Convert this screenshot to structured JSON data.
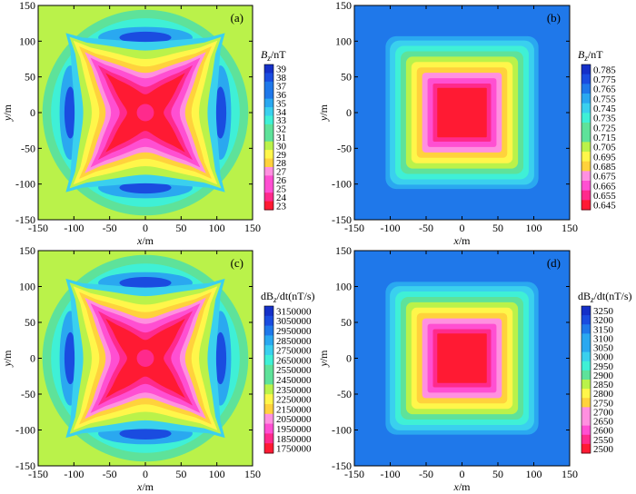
{
  "colors": {
    "background": "#ffffff",
    "axis": "#000000",
    "colormap": [
      "#ff1a33",
      "#ff2a8c",
      "#ff4fd2",
      "#ff90e0",
      "#ffd23c",
      "#fff64a",
      "#baf24a",
      "#5ee29a",
      "#3ff0d6",
      "#3ad0ee",
      "#2aa8f0",
      "#1f78ea",
      "#1a4ce0",
      "#1530c8"
    ]
  },
  "chart_data": [
    {
      "type": "heatmap",
      "panel_label": "(a)",
      "pattern": "star",
      "xlabel_var": "x",
      "xlabel_unit": "/m",
      "ylabel_var": "y",
      "ylabel_unit": "/m",
      "xlim": [
        -150,
        150
      ],
      "ylim": [
        -150,
        150
      ],
      "xticks": [
        "-150",
        "-100",
        "-50",
        "0",
        "50",
        "100",
        "150"
      ],
      "yticks": [
        "150",
        "100",
        "50",
        "0",
        "-50",
        "-100",
        "-150"
      ],
      "colorbar_title_var": "B",
      "colorbar_title_sub": "z",
      "colorbar_title_unit": "/nT",
      "colorbar_levels": [
        "39",
        "38",
        "37",
        "36",
        "35",
        "34",
        "33",
        "32",
        "31",
        "30",
        "29",
        "28",
        "27",
        "26",
        "25",
        "24",
        "23"
      ]
    },
    {
      "type": "heatmap",
      "panel_label": "(b)",
      "pattern": "square",
      "xlabel_var": "x",
      "xlabel_unit": "/m",
      "ylabel_var": "y",
      "ylabel_unit": "/m",
      "xlim": [
        -150,
        150
      ],
      "ylim": [
        -150,
        150
      ],
      "xticks": [
        "-150",
        "-100",
        "-50",
        "0",
        "50",
        "100",
        "150"
      ],
      "yticks": [
        "150",
        "100",
        "50",
        "0",
        "-50",
        "-100",
        "-150"
      ],
      "colorbar_title_var": "B",
      "colorbar_title_sub": "z",
      "colorbar_title_unit": "/nT",
      "colorbar_levels": [
        "0.785",
        "0.775",
        "0.765",
        "0.755",
        "0.745",
        "0.735",
        "0.725",
        "0.715",
        "0.705",
        "0.695",
        "0.685",
        "0.675",
        "0.665",
        "0.655",
        "0.645"
      ]
    },
    {
      "type": "heatmap",
      "panel_label": "(c)",
      "pattern": "star",
      "xlabel_var": "x",
      "xlabel_unit": "/m",
      "ylabel_var": "y",
      "ylabel_unit": "/m",
      "xlim": [
        -150,
        150
      ],
      "ylim": [
        -150,
        150
      ],
      "xticks": [
        "-150",
        "-100",
        "-50",
        "0",
        "50",
        "100",
        "150"
      ],
      "yticks": [
        "150",
        "100",
        "50",
        "0",
        "-50",
        "-100",
        "-150"
      ],
      "colorbar_title_pre": "dB",
      "colorbar_title_sub": "z",
      "colorbar_title_mid": "/dt",
      "colorbar_title_unit": "(nT/s)",
      "colorbar_levels": [
        "3150000",
        "3050000",
        "2950000",
        "2850000",
        "2750000",
        "2650000",
        "2550000",
        "2450000",
        "2350000",
        "2250000",
        "2150000",
        "2050000",
        "1950000",
        "1850000",
        "1750000"
      ]
    },
    {
      "type": "heatmap",
      "panel_label": "(d)",
      "pattern": "square",
      "xlabel_var": "x",
      "xlabel_unit": "/m",
      "ylabel_var": "y",
      "ylabel_unit": "/m",
      "xlim": [
        -150,
        150
      ],
      "ylim": [
        -150,
        150
      ],
      "xticks": [
        "-150",
        "-100",
        "-50",
        "0",
        "50",
        "100",
        "150"
      ],
      "yticks": [
        "150",
        "100",
        "50",
        "0",
        "-50",
        "-100",
        "-150"
      ],
      "colorbar_title_pre": "dB",
      "colorbar_title_sub": "z",
      "colorbar_title_mid": "/dt",
      "colorbar_title_unit": "(nT/s)",
      "colorbar_levels": [
        "3250",
        "3200",
        "3150",
        "3100",
        "3050",
        "3000",
        "2950",
        "2900",
        "2850",
        "2800",
        "2750",
        "2700",
        "2650",
        "2600",
        "2550",
        "2500"
      ]
    }
  ]
}
